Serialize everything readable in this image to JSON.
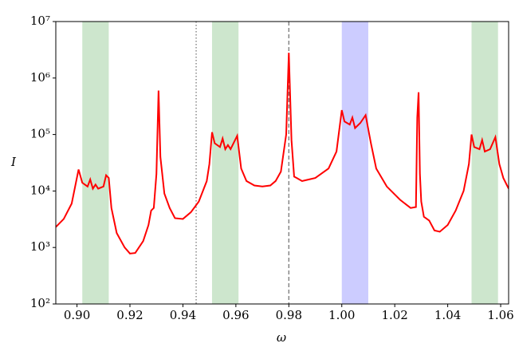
{
  "chart_data": {
    "type": "line",
    "x_label": "ω",
    "y_label": "I",
    "log_y": true,
    "color": "#ff0000",
    "xlim": [
      0.892,
      1.063
    ],
    "ylim": [
      100,
      10000000
    ],
    "xticks": [
      {
        "value": 0.9,
        "label": "0.90"
      },
      0.92,
      0.94,
      0.96,
      0.98,
      {
        "value": 1.0,
        "label": "1.00"
      },
      1.02,
      1.04,
      1.06
    ],
    "yticks": [
      {
        "value": 100,
        "label": "10²"
      },
      {
        "value": 1000,
        "label": "10³"
      },
      {
        "value": 10000,
        "label": "10⁴"
      },
      {
        "value": 100000,
        "label": "10⁵"
      },
      {
        "value": 1000000,
        "label": "10⁶"
      },
      {
        "value": 10000000,
        "label": "10⁷"
      }
    ],
    "spans": [
      {
        "start": 0.902,
        "end": 0.912,
        "color": "#cde6cd"
      },
      {
        "start": 0.951,
        "end": 0.961,
        "color": "#cde6cd"
      },
      {
        "start": 1.0,
        "end": 1.01,
        "color": "#ccccff"
      },
      {
        "start": 1.049,
        "end": 1.059,
        "color": "#cde6cd"
      }
    ],
    "vlines": [
      {
        "x": 0.945,
        "style": "dotted"
      },
      {
        "x": 0.98,
        "style": "dashed"
      }
    ],
    "x": [
      0.892,
      0.895,
      0.898,
      0.9006,
      0.902,
      0.904,
      0.905,
      0.906,
      0.907,
      0.908,
      0.91,
      0.911,
      0.912,
      0.913,
      0.915,
      0.918,
      0.92,
      0.922,
      0.925,
      0.927,
      0.928,
      0.929,
      0.93,
      0.9308,
      0.9315,
      0.933,
      0.935,
      0.937,
      0.94,
      0.943,
      0.946,
      0.949,
      0.95,
      0.951,
      0.952,
      0.954,
      0.955,
      0.956,
      0.957,
      0.958,
      0.9605,
      0.962,
      0.964,
      0.967,
      0.97,
      0.973,
      0.975,
      0.977,
      0.979,
      0.98,
      0.981,
      0.982,
      0.983,
      0.985,
      0.99,
      0.995,
      0.998,
      1.0,
      1.001,
      1.003,
      1.004,
      1.005,
      1.007,
      1.009,
      1.011,
      1.013,
      1.017,
      1.022,
      1.026,
      1.028,
      1.0285,
      1.029,
      1.0295,
      1.03,
      1.031,
      1.033,
      1.035,
      1.037,
      1.04,
      1.043,
      1.046,
      1.048,
      1.049,
      1.05,
      1.052,
      1.053,
      1.054,
      1.056,
      1.058,
      1.0595,
      1.061,
      1.063
    ],
    "values": [
      2300,
      3200,
      6000,
      24000,
      14000,
      12000,
      16000,
      11000,
      13000,
      11000,
      12000,
      19000,
      17000,
      5000,
      1800,
      1000,
      780,
      800,
      1300,
      2500,
      4500,
      5000,
      20000,
      600000,
      40000,
      9000,
      5000,
      3300,
      3200,
      4200,
      6500,
      15000,
      30000,
      110000,
      70000,
      60000,
      85000,
      55000,
      65000,
      55000,
      95000,
      25000,
      15000,
      12500,
      12000,
      12500,
      15000,
      22000,
      100000,
      2800000,
      80000,
      18000,
      17000,
      15000,
      17000,
      25000,
      50000,
      270000,
      170000,
      150000,
      200000,
      130000,
      160000,
      220000,
      70000,
      25000,
      12000,
      7000,
      5000,
      5200,
      200000,
      560000,
      20000,
      6500,
      3500,
      3000,
      2000,
      1900,
      2500,
      4500,
      10000,
      30000,
      100000,
      60000,
      55000,
      80000,
      50000,
      55000,
      90000,
      30000,
      17000,
      11000
    ]
  }
}
